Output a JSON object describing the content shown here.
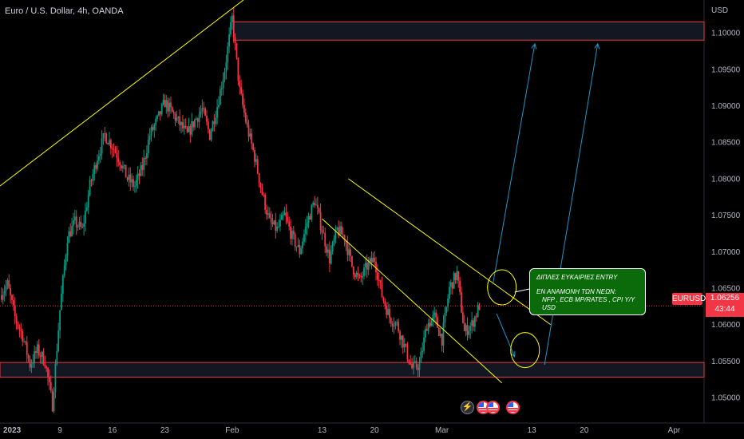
{
  "header": {
    "title": "Euro / U.S. Dollar, 4h, OANDA",
    "currency": "USD"
  },
  "last_price": {
    "symbol": "EURUSD",
    "price": "1.06256",
    "countdown": "43:44"
  },
  "annotation": {
    "line1": "ΔΙΠΛΕΣ ΕΥΚΑΙΡΙΕΣ ENTRY",
    "line2": "ΕΝ ΑΝΑΜΟΝΗ ΤΩΝ ΝΕΩΝ:",
    "line3": "NFP , ECB MP/RATES , CPI Y/Y USD"
  },
  "events": {
    "bolt_icon": "lightning-icon",
    "flag_icon": "us-flag-icon"
  },
  "colors": {
    "background": "#000000",
    "bull": "#089981",
    "bear": "#f23645",
    "trendline": "#ffff00",
    "arrow": "#2196c8",
    "zone_border": "#f23645",
    "annotation_bg": "#0b6b0b"
  },
  "chart_data": {
    "type": "candlestick",
    "title": "Euro / U.S. Dollar, 4h, OANDA",
    "y_axis": {
      "label": "USD",
      "ticks": [
        "1.10000",
        "1.09500",
        "1.09000",
        "1.08500",
        "1.08000",
        "1.07500",
        "1.07000",
        "1.06500",
        "1.06000",
        "1.05500",
        "1.05000"
      ],
      "tick_values": [
        1.1,
        1.095,
        1.09,
        1.085,
        1.08,
        1.075,
        1.07,
        1.065,
        1.06,
        1.055,
        1.05
      ],
      "range": [
        1.0465,
        1.1045
      ]
    },
    "x_axis": {
      "ticks": [
        "2023",
        "9",
        "16",
        "23",
        "Feb",
        "13",
        "20",
        "Mar",
        "13",
        "20",
        "Apr"
      ],
      "tick_days": [
        0,
        8,
        15,
        22,
        31,
        43,
        50,
        59,
        71,
        78,
        90
      ],
      "range_days": [
        0,
        94
      ]
    },
    "price_path": [
      [
        0,
        1.064
      ],
      [
        1,
        1.0655
      ],
      [
        2,
        1.061
      ],
      [
        3,
        1.0585
      ],
      [
        4,
        1.0545
      ],
      [
        5,
        1.0565
      ],
      [
        6,
        1.055
      ],
      [
        7,
        1.049
      ],
      [
        8,
        1.062
      ],
      [
        9,
        1.072
      ],
      [
        10,
        1.074
      ],
      [
        11,
        1.073
      ],
      [
        12,
        1.079
      ],
      [
        13,
        1.083
      ],
      [
        14,
        1.086
      ],
      [
        15,
        1.0845
      ],
      [
        16,
        1.0825
      ],
      [
        17,
        1.08
      ],
      [
        18,
        1.079
      ],
      [
        19,
        1.0815
      ],
      [
        20,
        1.086
      ],
      [
        21,
        1.088
      ],
      [
        22,
        1.0905
      ],
      [
        23,
        1.089
      ],
      [
        24,
        1.0875
      ],
      [
        25,
        1.086
      ],
      [
        26,
        1.088
      ],
      [
        27,
        1.0895
      ],
      [
        28,
        1.086
      ],
      [
        29,
        1.09
      ],
      [
        30,
        1.095
      ],
      [
        31,
        1.102
      ],
      [
        32,
        1.092
      ],
      [
        33,
        1.087
      ],
      [
        34,
        1.083
      ],
      [
        35,
        1.078
      ],
      [
        36,
        1.074
      ],
      [
        37,
        1.073
      ],
      [
        38,
        1.075
      ],
      [
        39,
        1.072
      ],
      [
        40,
        1.07
      ],
      [
        41,
        1.074
      ],
      [
        42,
        1.077
      ],
      [
        43,
        1.073
      ],
      [
        44,
        1.069
      ],
      [
        45,
        1.073
      ],
      [
        46,
        1.072
      ],
      [
        47,
        1.068
      ],
      [
        48,
        1.066
      ],
      [
        49,
        1.068
      ],
      [
        50,
        1.069
      ],
      [
        51,
        1.064
      ],
      [
        52,
        1.061
      ],
      [
        53,
        1.06
      ],
      [
        54,
        1.057
      ],
      [
        55,
        1.054
      ],
      [
        56,
        1.0545
      ],
      [
        57,
        1.06
      ],
      [
        58,
        1.061
      ],
      [
        59,
        1.058
      ],
      [
        60,
        1.065
      ],
      [
        61,
        1.067
      ],
      [
        62,
        1.059
      ],
      [
        63,
        1.06
      ],
      [
        64,
        1.0626
      ]
    ],
    "zones": [
      {
        "from_day": 31.2,
        "to_day": 94,
        "top": 1.1015,
        "bottom": 1.099
      },
      {
        "from_day": 0,
        "to_day": 94,
        "top": 1.0548,
        "bottom": 1.0528
      }
    ],
    "trendlines": [
      {
        "from": [
          0,
          1.079
        ],
        "to": [
          32.5,
          1.1045
        ]
      },
      {
        "from": [
          46.5,
          1.08
        ],
        "to": [
          73.5,
          1.06
        ]
      },
      {
        "from": [
          43,
          1.0745
        ],
        "to": [
          67,
          1.052
        ]
      }
    ],
    "arrows": [
      {
        "from": [
          65.8,
          1.0655
        ],
        "to": [
          71.4,
          1.0985
        ]
      },
      {
        "from": [
          66.3,
          1.0615
        ],
        "to": [
          68.7,
          1.0556
        ]
      },
      {
        "from": [
          72.7,
          1.0545
        ],
        "to": [
          79.8,
          1.0985
        ]
      }
    ],
    "circles": [
      {
        "center": [
          67,
          1.0651
        ]
      },
      {
        "center": [
          70.1,
          1.0565
        ]
      }
    ],
    "last_price_line": 1.06256
  }
}
